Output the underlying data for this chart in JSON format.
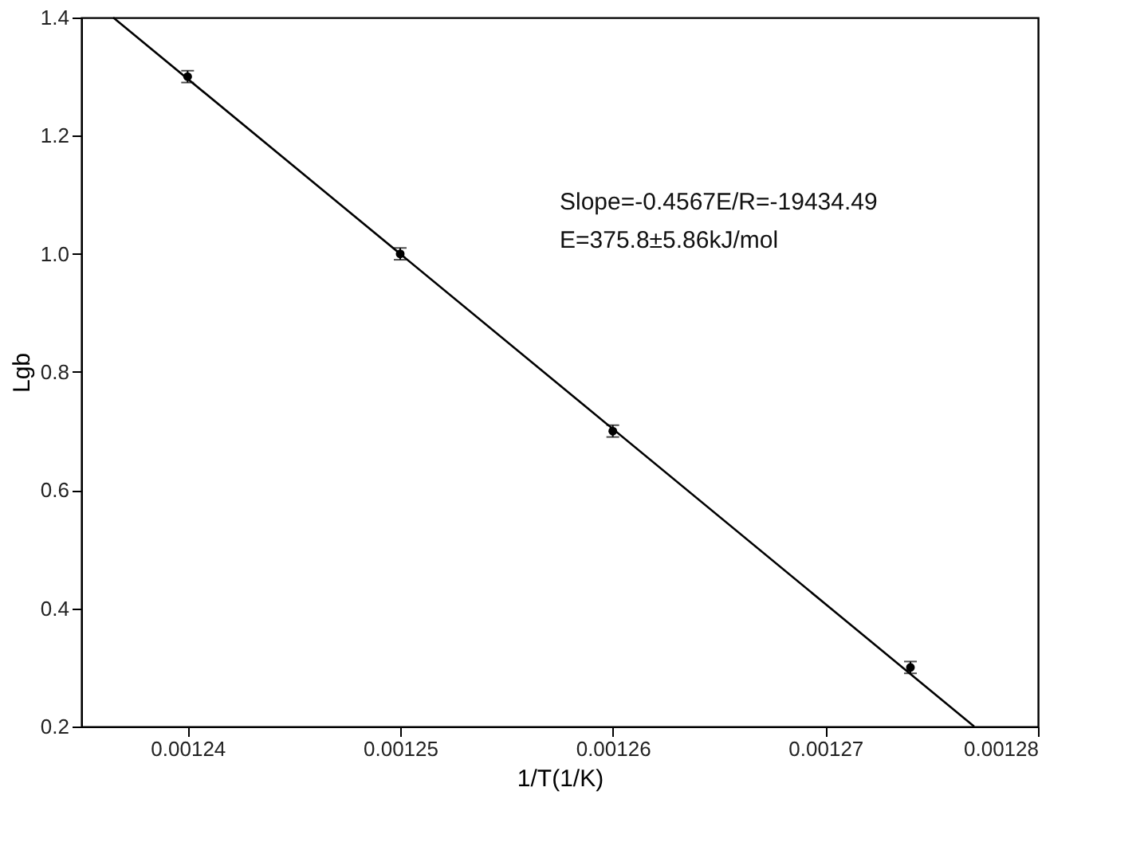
{
  "chart_data": {
    "type": "scatter",
    "xlabel": "1/T(1/K)",
    "ylabel": "Lgb",
    "xlim": [
      0.001235,
      0.00128
    ],
    "ylim": [
      0.2,
      1.4
    ],
    "xticks": [
      0.00124,
      0.00125,
      0.00126,
      0.00127,
      0.00128
    ],
    "yticks": [
      0.2,
      0.4,
      0.6,
      0.8,
      {
        "value": 1.0,
        "label": "1.0"
      },
      1.2,
      1.4
    ],
    "grid": false,
    "marker": "circle",
    "annotations": [
      "Slope=-0.4567E/R=-19434.49",
      "E=375.8±5.86kJ/mol"
    ],
    "series": [
      {
        "color": "#000000",
        "x": [
          0.00124,
          0.00125,
          0.00126,
          0.001274
        ],
        "values": [
          1.3,
          1.0,
          0.7,
          0.3
        ],
        "errors": [
          0.01,
          0.01,
          0.01,
          0.01
        ]
      },
      {
        "type": "line",
        "color": "#000000",
        "line_style": "solid",
        "marker": "none",
        "x": [
          0.0012365,
          0.001277
        ],
        "values": [
          1.4,
          0.2
        ]
      }
    ]
  }
}
